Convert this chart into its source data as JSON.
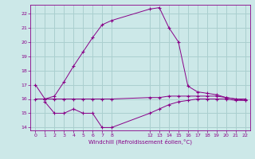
{
  "xlabel": "Windchill (Refroidissement éolien,°C)",
  "background_color": "#cce8e8",
  "grid_color": "#aacfcf",
  "line_color": "#880088",
  "ylim": [
    13.8,
    22.6
  ],
  "xlim": [
    -0.5,
    22.5
  ],
  "yticks": [
    14,
    15,
    16,
    17,
    18,
    19,
    20,
    21,
    22
  ],
  "xticks": [
    0,
    1,
    2,
    3,
    4,
    5,
    6,
    7,
    8,
    12,
    13,
    14,
    15,
    16,
    17,
    18,
    19,
    20,
    21,
    22
  ],
  "line1_x": [
    0,
    1,
    2,
    3,
    4,
    5,
    6,
    7,
    8,
    12,
    13,
    14,
    15,
    16,
    17,
    18,
    19,
    20,
    21,
    22
  ],
  "line1_y": [
    17.0,
    16.0,
    16.2,
    17.2,
    18.3,
    19.3,
    20.3,
    21.2,
    21.5,
    22.3,
    22.4,
    21.0,
    20.0,
    16.9,
    16.5,
    16.4,
    16.3,
    16.1,
    16.0,
    15.9
  ],
  "line2_x": [
    0,
    1,
    2,
    3,
    4,
    5,
    6,
    7,
    8,
    12,
    13,
    14,
    15,
    16,
    17,
    18,
    19,
    20,
    21,
    22
  ],
  "line2_y": [
    16.0,
    16.0,
    16.0,
    16.0,
    16.0,
    16.0,
    16.0,
    16.0,
    16.0,
    16.1,
    16.1,
    16.2,
    16.2,
    16.2,
    16.2,
    16.2,
    16.2,
    16.1,
    16.0,
    16.0
  ],
  "line3_x": [
    1,
    2,
    3,
    4,
    5,
    6,
    7,
    8,
    12,
    13,
    14,
    15,
    16,
    17,
    18,
    19,
    20,
    21,
    22
  ],
  "line3_y": [
    15.8,
    15.0,
    15.0,
    15.3,
    15.0,
    15.0,
    14.0,
    14.0,
    15.0,
    15.3,
    15.6,
    15.8,
    15.9,
    16.0,
    16.0,
    16.0,
    16.0,
    15.9,
    15.9
  ]
}
